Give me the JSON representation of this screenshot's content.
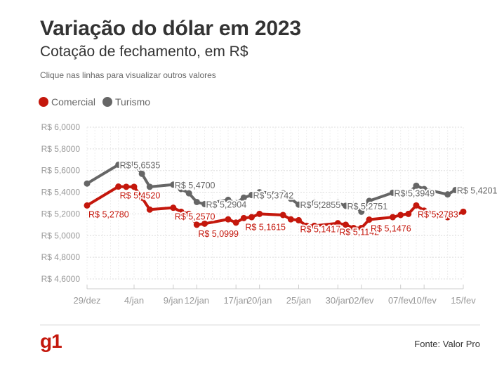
{
  "header": {
    "title": "Variação do dólar em 2023",
    "subtitle": "Cotação de fechamento, em R$",
    "hint": "Clique nas linhas para visualizar outros valores"
  },
  "footer": {
    "logo": "g1",
    "source": "Fonte: Valor Pro"
  },
  "colors": {
    "comercial": "#c4170c",
    "turismo": "#666666",
    "grid": "#dddddd",
    "tick_text": "#999999",
    "brand": "#c4170c"
  },
  "chart_data": {
    "type": "line",
    "title": "Variação do dólar em 2023",
    "subtitle": "Cotação de fechamento, em R$",
    "ylim": [
      4.6,
      6.0
    ],
    "y_ticks": [
      4.6,
      4.8,
      5.0,
      5.2,
      5.4,
      5.6,
      5.8,
      6.0
    ],
    "y_tick_labels": [
      "R$ 4,6000",
      "R$ 4,8000",
      "R$ 5,0000",
      "R$ 5,2000",
      "R$ 5,4000",
      "R$ 5,6000",
      "R$ 5,8000",
      "R$ 6,0000"
    ],
    "x_range": [
      "2022-12-29",
      "2023-02-15"
    ],
    "x_ticks": [
      "2022-12-29",
      "2023-01-04",
      "2023-01-09",
      "2023-01-12",
      "2023-01-17",
      "2023-01-20",
      "2023-01-25",
      "2023-01-30",
      "2023-02-02",
      "2023-02-07",
      "2023-02-10",
      "2023-02-15"
    ],
    "x_tick_labels": [
      "29/dez",
      "4/jan",
      "9/jan",
      "12/jan",
      "17/jan",
      "20/jan",
      "25/jan",
      "30/jan",
      "02/fev",
      "07/fev",
      "10/fev",
      "15/fev"
    ],
    "grid": true,
    "legend_placement": "top-left",
    "series": [
      {
        "name": "Comercial",
        "color": "#c4170c",
        "points": [
          {
            "x": "2022-12-29",
            "y": 5.278
          },
          {
            "x": "2023-01-02",
            "y": 5.452
          },
          {
            "x": "2023-01-03",
            "y": 5.45
          },
          {
            "x": "2023-01-04",
            "y": 5.45
          },
          {
            "x": "2023-01-05",
            "y": 5.35
          },
          {
            "x": "2023-01-06",
            "y": 5.24
          },
          {
            "x": "2023-01-09",
            "y": 5.257
          },
          {
            "x": "2023-01-10",
            "y": 5.22
          },
          {
            "x": "2023-01-11",
            "y": 5.2
          },
          {
            "x": "2023-01-12",
            "y": 5.0999
          },
          {
            "x": "2023-01-13",
            "y": 5.11
          },
          {
            "x": "2023-01-16",
            "y": 5.15
          },
          {
            "x": "2023-01-17",
            "y": 5.12
          },
          {
            "x": "2023-01-18",
            "y": 5.1615
          },
          {
            "x": "2023-01-19",
            "y": 5.17
          },
          {
            "x": "2023-01-20",
            "y": 5.2
          },
          {
            "x": "2023-01-23",
            "y": 5.19
          },
          {
            "x": "2023-01-24",
            "y": 5.15
          },
          {
            "x": "2023-01-25",
            "y": 5.1417
          },
          {
            "x": "2023-01-26",
            "y": 5.09
          },
          {
            "x": "2023-01-27",
            "y": 5.09
          },
          {
            "x": "2023-01-30",
            "y": 5.1142
          },
          {
            "x": "2023-01-31",
            "y": 5.1
          },
          {
            "x": "2023-02-01",
            "y": 5.07
          },
          {
            "x": "2023-02-02",
            "y": 5.07
          },
          {
            "x": "2023-02-03",
            "y": 5.1476
          },
          {
            "x": "2023-02-06",
            "y": 5.17
          },
          {
            "x": "2023-02-07",
            "y": 5.19
          },
          {
            "x": "2023-02-08",
            "y": 5.2
          },
          {
            "x": "2023-02-09",
            "y": 5.2783
          },
          {
            "x": "2023-02-10",
            "y": 5.23
          },
          {
            "x": "2023-02-13",
            "y": 5.17
          },
          {
            "x": "2023-02-14",
            "y": 5.19
          },
          {
            "x": "2023-02-15",
            "y": 5.22
          }
        ],
        "labels": [
          {
            "x": "2022-12-29",
            "text": "R$ 5,2780"
          },
          {
            "x": "2023-01-02",
            "text": "R$ 5,4520"
          },
          {
            "x": "2023-01-09",
            "text": "R$ 5,2570"
          },
          {
            "x": "2023-01-12",
            "text": "R$ 5,0999"
          },
          {
            "x": "2023-01-18",
            "text": "R$ 5,1615"
          },
          {
            "x": "2023-01-25",
            "text": "R$ 5,1417"
          },
          {
            "x": "2023-01-30",
            "text": "R$ 5,1142"
          },
          {
            "x": "2023-02-03",
            "text": "R$ 5,1476"
          },
          {
            "x": "2023-02-09",
            "text": "R$ 5,2783"
          }
        ]
      },
      {
        "name": "Turismo",
        "color": "#666666",
        "points": [
          {
            "x": "2022-12-29",
            "y": 5.48
          },
          {
            "x": "2023-01-02",
            "y": 5.6535
          },
          {
            "x": "2023-01-03",
            "y": 5.66
          },
          {
            "x": "2023-01-04",
            "y": 5.66
          },
          {
            "x": "2023-01-05",
            "y": 5.57
          },
          {
            "x": "2023-01-06",
            "y": 5.45
          },
          {
            "x": "2023-01-09",
            "y": 5.47
          },
          {
            "x": "2023-01-10",
            "y": 5.43
          },
          {
            "x": "2023-01-11",
            "y": 5.39
          },
          {
            "x": "2023-01-12",
            "y": 5.31
          },
          {
            "x": "2023-01-13",
            "y": 5.2904
          },
          {
            "x": "2023-01-16",
            "y": 5.33
          },
          {
            "x": "2023-01-17",
            "y": 5.3
          },
          {
            "x": "2023-01-18",
            "y": 5.35
          },
          {
            "x": "2023-01-19",
            "y": 5.3742
          },
          {
            "x": "2023-01-20",
            "y": 5.4
          },
          {
            "x": "2023-01-23",
            "y": 5.39
          },
          {
            "x": "2023-01-24",
            "y": 5.34
          },
          {
            "x": "2023-01-25",
            "y": 5.2855
          },
          {
            "x": "2023-01-26",
            "y": 5.27
          },
          {
            "x": "2023-01-27",
            "y": 5.3
          },
          {
            "x": "2023-01-30",
            "y": 5.3
          },
          {
            "x": "2023-01-31",
            "y": 5.2751
          },
          {
            "x": "2023-02-01",
            "y": 5.28
          },
          {
            "x": "2023-02-02",
            "y": 5.22
          },
          {
            "x": "2023-02-03",
            "y": 5.32
          },
          {
            "x": "2023-02-06",
            "y": 5.3949
          },
          {
            "x": "2023-02-07",
            "y": 5.39
          },
          {
            "x": "2023-02-08",
            "y": 5.39
          },
          {
            "x": "2023-02-09",
            "y": 5.46
          },
          {
            "x": "2023-02-10",
            "y": 5.43
          },
          {
            "x": "2023-02-13",
            "y": 5.38
          },
          {
            "x": "2023-02-14",
            "y": 5.4201
          },
          {
            "x": "2023-02-15",
            "y": 5.42
          }
        ],
        "labels": [
          {
            "x": "2023-01-02",
            "text": "R$ 5,6535"
          },
          {
            "x": "2023-01-09",
            "text": "R$ 5,4700"
          },
          {
            "x": "2023-01-13",
            "text": "R$ 5,2904"
          },
          {
            "x": "2023-01-19",
            "text": "R$ 5,3742"
          },
          {
            "x": "2023-01-25",
            "text": "R$ 5,2855"
          },
          {
            "x": "2023-01-31",
            "text": "R$ 5,2751"
          },
          {
            "x": "2023-02-06",
            "text": "R$ 5,3949"
          },
          {
            "x": "2023-02-14",
            "text": "R$ 5,4201"
          }
        ]
      }
    ]
  }
}
